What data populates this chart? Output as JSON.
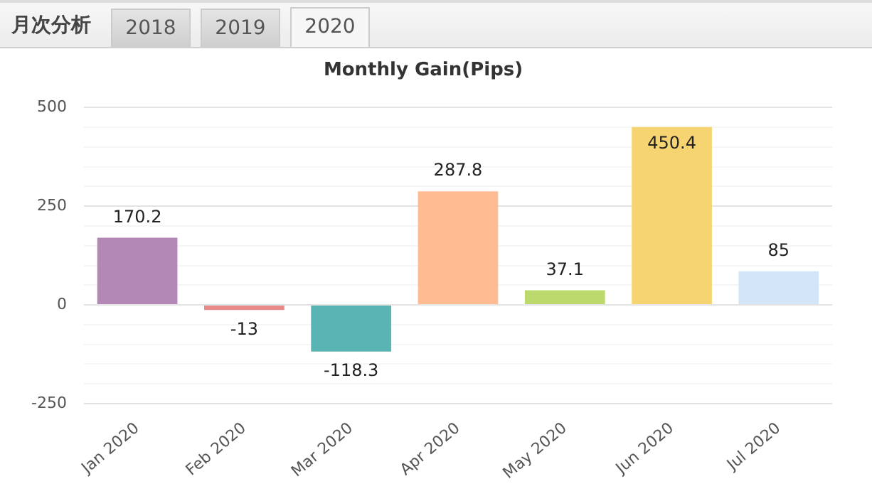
{
  "chart_data": {
    "type": "bar",
    "title": "Monthly Gain(Pips)",
    "annotations": [
      "月次分析",
      "2018",
      "2019",
      "2020"
    ],
    "categories": [
      "Jan 2020",
      "Feb 2020",
      "Mar 2020",
      "Apr 2020",
      "May 2020",
      "Jun 2020",
      "Jul 2020"
    ],
    "values": [
      170.2,
      -13,
      -118.3,
      287.8,
      37.1,
      450.4,
      85
    ],
    "colors": [
      "#b387b6",
      "#e88a87",
      "#5ab4b3",
      "#ffbb92",
      "#bcd96d",
      "#f5d471",
      "#d3e6f8"
    ],
    "ylim": [
      -250,
      500
    ],
    "yticks": [
      {
        "value": -250,
        "label": "-250"
      },
      {
        "value": -200,
        "label": null
      },
      {
        "value": -150,
        "label": null
      },
      {
        "value": -100,
        "label": null
      },
      {
        "value": -50,
        "label": null
      },
      0,
      {
        "value": 50,
        "label": null
      },
      {
        "value": 100,
        "label": null
      },
      {
        "value": 150,
        "label": null
      },
      {
        "value": 200,
        "label": null
      },
      250,
      {
        "value": 300,
        "label": null
      },
      {
        "value": 350,
        "label": null
      },
      {
        "value": 400,
        "label": null
      },
      {
        "value": 450,
        "label": null
      },
      500
    ],
    "grid": "y",
    "data_labels": true,
    "legend": false
  }
}
